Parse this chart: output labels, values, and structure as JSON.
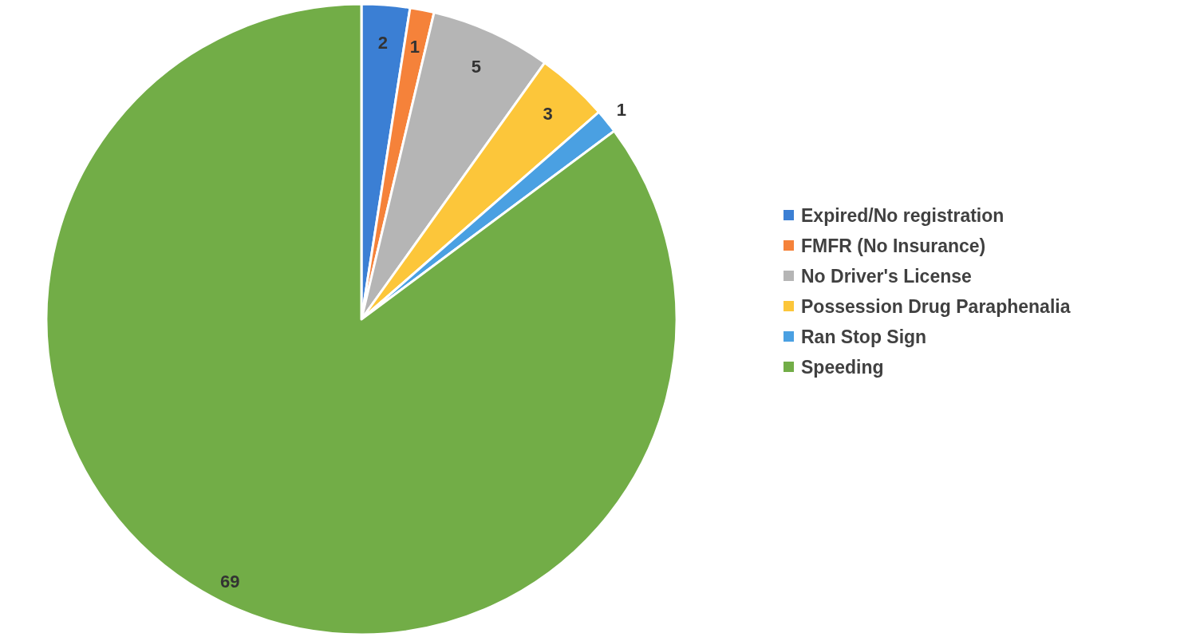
{
  "chart_data": {
    "type": "pie",
    "categories": [
      "Expired/No registration",
      "FMFR (No Insurance)",
      "No Driver's License",
      "Possession Drug Paraphenalia",
      "Ran Stop Sign",
      "Speeding"
    ],
    "values": [
      2,
      1,
      5,
      3,
      1,
      69
    ],
    "colors": [
      "#3b7fd4",
      "#f5823a",
      "#b5b5b5",
      "#fcc63a",
      "#4aa0e2",
      "#72ad47"
    ],
    "data_labels": true,
    "legend": "right"
  }
}
